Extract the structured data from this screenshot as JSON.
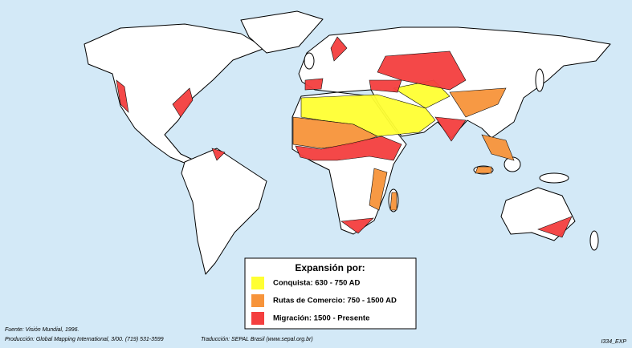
{
  "legend": {
    "title": "Expansión por:",
    "items": [
      {
        "label": "Conquista: 630 - 750 AD",
        "color": "#ffff33"
      },
      {
        "label": "Rutas de Comercio: 750 - 1500 AD",
        "color": "#f7943b"
      },
      {
        "label": "Migración: 1500 - Presente",
        "color": "#f43f3f"
      }
    ]
  },
  "footer": {
    "source": "Fuente: Visión Mundial, 1996.",
    "production": "Producción: Global Mapping International, 3/00. (719) 531-3599",
    "translation": "Traducción: SEPAL Brasil (www.sepal.org.br)",
    "code": "I334_EXP"
  }
}
